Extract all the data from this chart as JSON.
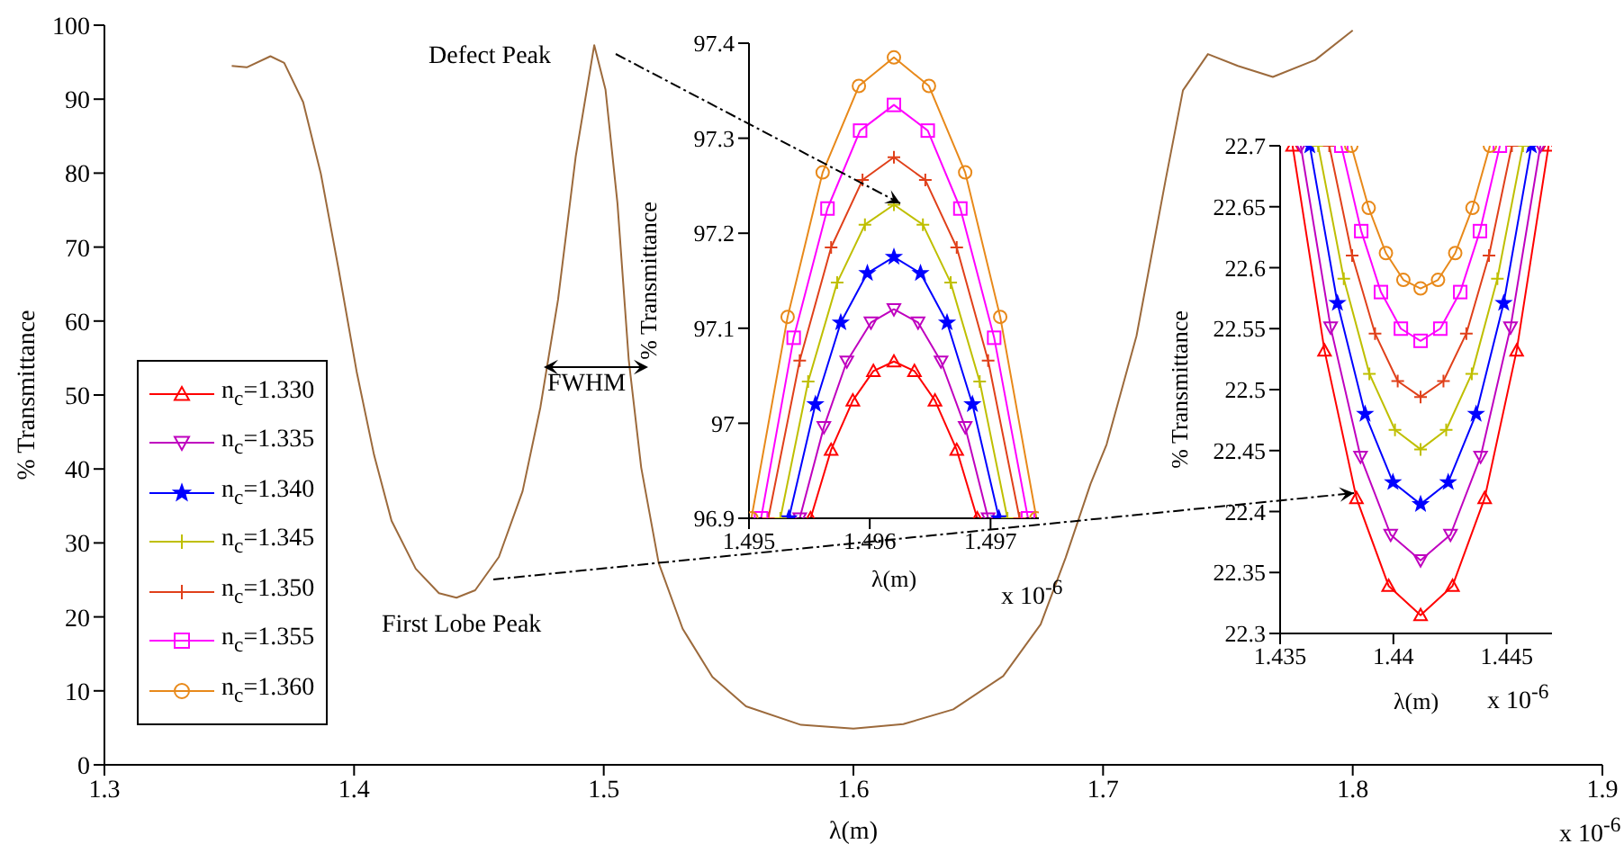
{
  "chart_data": [
    {
      "type": "line",
      "xlabel": "λ(m)",
      "ylabel": "% Transmittance",
      "annotations": [
        "Defect Peak",
        "FWHM",
        "First Lobe Peak",
        "x 10$^{-6}$"
      ],
      "x": [
        1.351,
        1.357,
        1.3665,
        1.372,
        1.3796,
        1.3867,
        1.3938,
        1.401,
        1.408,
        1.415,
        1.4247,
        1.434,
        1.441,
        1.4485,
        1.458,
        1.4675,
        1.4746,
        1.4817,
        1.4888,
        1.4962,
        1.5007,
        1.5055,
        1.51,
        1.515,
        1.522,
        1.5316,
        1.5435,
        1.557,
        1.579,
        1.6,
        1.62,
        1.64,
        1.66,
        1.675,
        1.685,
        1.695,
        1.7014,
        1.7134,
        1.725,
        1.732,
        1.742,
        1.754,
        1.768,
        1.785,
        1.8
      ],
      "xlim": [
        1.3,
        1.9
      ],
      "xticks": [
        1.3,
        1.4,
        1.5,
        1.6,
        1.7,
        1.8,
        1.9
      ],
      "ylim": [
        0,
        100
      ],
      "yticks": [
        0,
        10,
        20,
        30,
        40,
        50,
        60,
        70,
        80,
        90,
        100
      ],
      "series": [
        {
          "color": "#9c6a3c",
          "values": [
            94.5,
            94.3,
            95.8,
            94.9,
            89.6,
            79.9,
            67,
            53.2,
            41.9,
            33,
            26.5,
            23.2,
            22.6,
            23.6,
            28.1,
            37,
            48.3,
            62.9,
            82.3,
            97.3,
            91.3,
            75.9,
            54.8,
            40.2,
            27.3,
            18.4,
            11.9,
            7.9,
            5.4,
            4.9,
            5.5,
            7.5,
            12,
            19,
            28,
            38,
            43.3,
            58,
            79,
            91.2,
            96.1,
            94.5,
            93,
            95.3,
            99.3
          ]
        }
      ]
    },
    {
      "type": "line",
      "xlabel": "λ(m)",
      "ylabel": "% Transmittance",
      "annotations": [
        "x 10$^{-6}$"
      ],
      "legend": "left",
      "xlim": [
        1.495,
        1.4974
      ],
      "xticks": [
        1.495,
        1.496,
        1.497
      ],
      "ylim": [
        96.9,
        97.4
      ],
      "yticks": [
        96.9,
        97,
        97.1,
        97.2,
        97.3,
        97.4
      ],
      "series": [
        {
          "name": "n$_{c}$=1.330",
          "color": "#ff0000",
          "marker": "triangle",
          "x": [
            1.49551,
            1.49568,
            1.49586,
            1.49603,
            1.4962,
            1.49637,
            1.49654,
            1.49672,
            1.49689
          ],
          "values": [
            96.9,
            96.972,
            97.024,
            97.055,
            97.065,
            97.055,
            97.024,
            96.972,
            96.9
          ]
        },
        {
          "name": "n$_{c}$=1.335",
          "color": "#bf00bf",
          "marker": "triangle-down",
          "x": [
            1.49542,
            1.49562,
            1.49581,
            1.49601,
            1.4962,
            1.4964,
            1.49659,
            1.49679,
            1.49698
          ],
          "values": [
            96.9,
            96.996,
            97.065,
            97.106,
            97.12,
            97.106,
            97.065,
            96.996,
            96.9
          ]
        },
        {
          "name": "n$_{c}$=1.340",
          "color": "#0000ff",
          "marker": "star",
          "x": [
            1.49533,
            1.49555,
            1.49576,
            1.49598,
            1.4962,
            1.49642,
            1.49664,
            1.49685,
            1.49707
          ],
          "values": [
            96.9,
            97.02,
            97.106,
            97.158,
            97.175,
            97.158,
            97.106,
            97.02,
            96.9
          ]
        },
        {
          "name": "n$_{c}$=1.345",
          "color": "#bfbf00",
          "marker": "cross",
          "x": [
            1.49526,
            1.49549,
            1.49573,
            1.49596,
            1.4962,
            1.49644,
            1.49667,
            1.49691,
            1.49714
          ],
          "values": [
            96.9,
            97.044,
            97.148,
            97.209,
            97.23,
            97.209,
            97.148,
            97.044,
            96.9
          ]
        },
        {
          "name": "n$_{c}$=1.350",
          "color": "#e0401a",
          "marker": "cross",
          "x": [
            1.49516,
            1.49542,
            1.49568,
            1.49594,
            1.4962,
            1.49646,
            1.49672,
            1.49698,
            1.49724
          ],
          "values": [
            96.9,
            97.066,
            97.185,
            97.256,
            97.28,
            97.256,
            97.185,
            97.066,
            96.9
          ]
        },
        {
          "name": "n$_{c}$=1.355",
          "color": "#ff00ff",
          "marker": "square",
          "x": [
            1.4951,
            1.49537,
            1.49565,
            1.49592,
            1.4962,
            1.49648,
            1.49675,
            1.49703,
            1.49731
          ],
          "values": [
            96.9,
            97.09,
            97.226,
            97.308,
            97.335,
            97.308,
            97.226,
            97.09,
            96.9
          ]
        },
        {
          "name": "n$_{c}$=1.360",
          "color": "#e8891a",
          "marker": "circle",
          "x": [
            1.49502,
            1.49532,
            1.49561,
            1.49591,
            1.4962,
            1.49649,
            1.49679,
            1.49708,
            1.49738
          ],
          "values": [
            96.9,
            97.112,
            97.264,
            97.355,
            97.385,
            97.355,
            97.264,
            97.112,
            96.9
          ]
        }
      ]
    },
    {
      "type": "line",
      "xlabel": "λ(m)",
      "ylabel": "% Transmittance",
      "annotations": [
        "x 10$^{-6}$"
      ],
      "xlim": [
        1.435,
        1.447
      ],
      "xticks": [
        1.435,
        1.44,
        1.445
      ],
      "ylim": [
        22.3,
        22.7
      ],
      "yticks": [
        22.3,
        22.35,
        22.4,
        22.45,
        22.5,
        22.55,
        22.6,
        22.65,
        22.7
      ],
      "series": [
        {
          "color": "#ff0000",
          "marker": "triangle",
          "x": [
            1.43555,
            1.43696,
            1.43837,
            1.43979,
            1.4412,
            1.44261,
            1.44403,
            1.44544,
            1.44685
          ],
          "values": [
            22.7,
            22.532,
            22.411,
            22.339,
            22.315,
            22.339,
            22.411,
            22.532,
            22.7
          ]
        },
        {
          "color": "#bf00bf",
          "marker": "triangle-down",
          "x": [
            1.43591,
            1.43723,
            1.43855,
            1.43988,
            1.4412,
            1.44252,
            1.44385,
            1.44517,
            1.44649
          ],
          "values": [
            22.7,
            22.551,
            22.445,
            22.381,
            22.36,
            22.381,
            22.445,
            22.551,
            22.7
          ]
        },
        {
          "color": "#0000ff",
          "marker": "star",
          "x": [
            1.43631,
            1.43753,
            1.43875,
            1.43998,
            1.4412,
            1.44242,
            1.44365,
            1.44487,
            1.44609
          ],
          "values": [
            22.7,
            22.571,
            22.48,
            22.424,
            22.406,
            22.424,
            22.48,
            22.571,
            22.7
          ]
        },
        {
          "color": "#bfbf00",
          "marker": "cross",
          "x": [
            1.43668,
            1.43781,
            1.43894,
            1.44007,
            1.4412,
            1.44233,
            1.44346,
            1.44459,
            1.44572
          ],
          "values": [
            22.7,
            22.591,
            22.513,
            22.467,
            22.451,
            22.467,
            22.513,
            22.591,
            22.7
          ]
        },
        {
          "color": "#e0401a",
          "marker": "cross",
          "x": [
            1.43717,
            1.43818,
            1.43919,
            1.44019,
            1.4412,
            1.44221,
            1.44322,
            1.44422,
            1.44523
          ],
          "values": [
            22.7,
            22.61,
            22.546,
            22.507,
            22.494,
            22.507,
            22.546,
            22.61,
            22.7
          ]
        },
        {
          "color": "#ff00ff",
          "marker": "square",
          "x": [
            1.4377,
            1.43858,
            1.43945,
            1.44033,
            1.4412,
            1.44207,
            1.44295,
            1.44382,
            1.4447
          ],
          "values": [
            22.7,
            22.63,
            22.58,
            22.55,
            22.54,
            22.55,
            22.58,
            22.63,
            22.7
          ]
        },
        {
          "color": "#e8891a",
          "marker": "circle",
          "x": [
            1.43814,
            1.43891,
            1.43967,
            1.44044,
            1.4412,
            1.44197,
            1.44273,
            1.44349,
            1.44426
          ],
          "values": [
            22.7,
            22.649,
            22.612,
            22.59,
            22.583,
            22.59,
            22.612,
            22.649,
            22.7
          ]
        }
      ]
    }
  ]
}
